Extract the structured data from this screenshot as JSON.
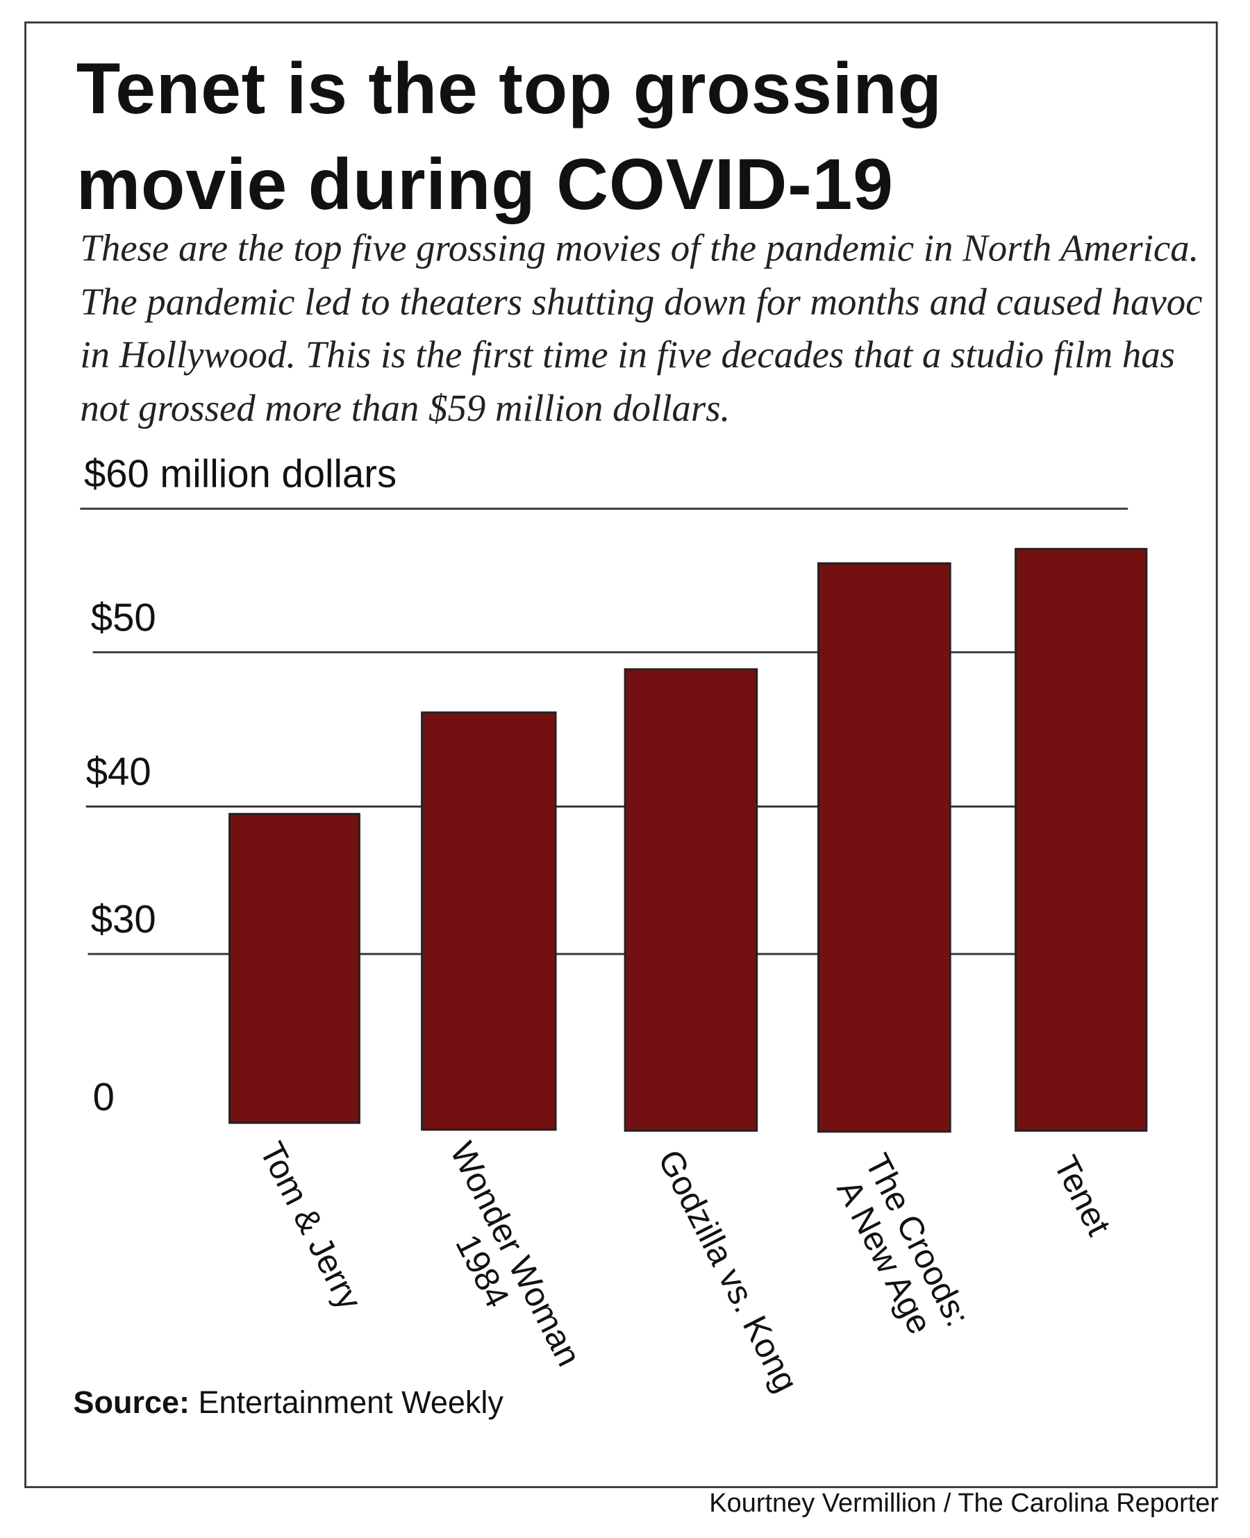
{
  "title_line1": "Tenet is the top grossing",
  "title_line2": "movie during COVID-19",
  "subtitle": "These are the top five grossing movies of the pandemic in North America. The pandemic led to theaters shutting down for months and caused havoc in Hollywood. This is the first time in five decades that a studio film has not grossed more than $59 million dollars.",
  "source_label": "Source:",
  "source_value": "Entertainment Weekly",
  "credit": "Kourtney Vermillion / The Carolina Reporter",
  "chart_data": {
    "type": "bar",
    "title": "Tenet is the top grossing movie during COVID-19",
    "ylabel": "$60 million dollars",
    "categories": [
      "Tom & Jerry",
      "Wonder Woman 1984",
      "Godzilla vs. Kong",
      "The Croods: A New Age",
      "Tenet"
    ],
    "category_lines": [
      [
        "Tom & Jerry"
      ],
      [
        "Wonder Woman",
        "1984"
      ],
      [
        "Godzilla vs. Kong"
      ],
      [
        "The Croods:",
        "A New Age"
      ],
      [
        "Tenet"
      ]
    ],
    "values": [
      39.5,
      46.1,
      48.9,
      56.2,
      57.2
    ],
    "yticks": [
      0,
      30,
      40,
      50,
      60
    ],
    "ytick_labels": [
      "0",
      "$30",
      "$40",
      "$50",
      "$60 million dollars"
    ],
    "ylim": [
      0,
      60
    ],
    "axis_break": true,
    "grid": true,
    "bar_color": "#721012"
  }
}
